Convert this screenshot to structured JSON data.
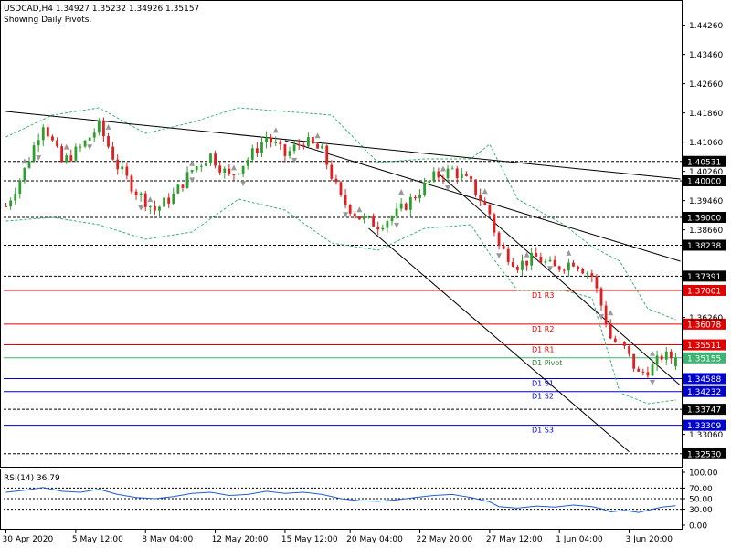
{
  "header": {
    "symbol_line": "USDCAD,H4  1.34927 1.35232 1.34926 1.35157",
    "subtitle": "Showing Daily Pivots."
  },
  "chart_data": {
    "type": "candlestick",
    "symbol": "USDCAD",
    "timeframe": "H4",
    "ohlc": {
      "open": 1.34927,
      "high": 1.35232,
      "low": 1.34926,
      "close": 1.35157
    },
    "ylim": [
      1.322,
      1.449
    ],
    "y_ticks": [
      "1.44260",
      "1.43460",
      "1.42660",
      "1.41860",
      "1.41060",
      "1.40260",
      "1.39460",
      "1.38660",
      "1.36260",
      "1.33060"
    ],
    "x_ticks": [
      "30 Apr 2020",
      "5 May 12:00",
      "8 May 04:00",
      "12 May 20:00",
      "15 May 12:00",
      "20 May 04:00",
      "22 May 20:00",
      "27 May 12:00",
      "1 Jun 04:00",
      "3 Jun 20:00"
    ],
    "x_count": 145,
    "price_path": [
      [
        0,
        1.393
      ],
      [
        4,
        1.403
      ],
      [
        8,
        1.416
      ],
      [
        12,
        1.405
      ],
      [
        16,
        1.409
      ],
      [
        20,
        1.415
      ],
      [
        24,
        1.404
      ],
      [
        28,
        1.397
      ],
      [
        32,
        1.392
      ],
      [
        36,
        1.396
      ],
      [
        40,
        1.403
      ],
      [
        44,
        1.407
      ],
      [
        48,
        1.401
      ],
      [
        52,
        1.406
      ],
      [
        56,
        1.412
      ],
      [
        60,
        1.407
      ],
      [
        64,
        1.411
      ],
      [
        68,
        1.408
      ],
      [
        72,
        1.395
      ],
      [
        76,
        1.39
      ],
      [
        80,
        1.388
      ],
      [
        84,
        1.391
      ],
      [
        88,
        1.396
      ],
      [
        92,
        1.401
      ],
      [
        96,
        1.403
      ],
      [
        100,
        1.399
      ],
      [
        104,
        1.391
      ],
      [
        106,
        1.382
      ],
      [
        110,
        1.377
      ],
      [
        114,
        1.379
      ],
      [
        118,
        1.376
      ],
      [
        122,
        1.378
      ],
      [
        126,
        1.374
      ],
      [
        128,
        1.366
      ],
      [
        130,
        1.357
      ],
      [
        133,
        1.354
      ],
      [
        136,
        1.347
      ],
      [
        139,
        1.349
      ],
      [
        141,
        1.352
      ],
      [
        144,
        1.3516
      ]
    ],
    "bands_upper": [
      [
        0,
        1.412
      ],
      [
        10,
        1.418
      ],
      [
        20,
        1.42
      ],
      [
        30,
        1.413
      ],
      [
        40,
        1.416
      ],
      [
        50,
        1.42
      ],
      [
        60,
        1.419
      ],
      [
        70,
        1.418
      ],
      [
        80,
        1.405
      ],
      [
        90,
        1.406
      ],
      [
        100,
        1.406
      ],
      [
        104,
        1.41
      ],
      [
        110,
        1.395
      ],
      [
        120,
        1.388
      ],
      [
        126,
        1.382
      ],
      [
        132,
        1.378
      ],
      [
        138,
        1.365
      ],
      [
        144,
        1.362
      ]
    ],
    "bands_lower": [
      [
        0,
        1.389
      ],
      [
        10,
        1.39
      ],
      [
        20,
        1.388
      ],
      [
        30,
        1.384
      ],
      [
        40,
        1.386
      ],
      [
        50,
        1.395
      ],
      [
        60,
        1.392
      ],
      [
        70,
        1.383
      ],
      [
        80,
        1.381
      ],
      [
        90,
        1.387
      ],
      [
        100,
        1.388
      ],
      [
        104,
        1.38
      ],
      [
        110,
        1.37
      ],
      [
        120,
        1.37
      ],
      [
        126,
        1.368
      ],
      [
        132,
        1.342
      ],
      [
        138,
        1.339
      ],
      [
        144,
        1.34
      ]
    ],
    "horizontal_levels": [
      {
        "value": 1.40531,
        "label": "1.40531",
        "style": "dash",
        "color": "#000000"
      },
      {
        "value": 1.4,
        "label": "1.40000",
        "style": "dash",
        "color": "#000000"
      },
      {
        "value": 1.39,
        "label": "1.39000",
        "style": "dash",
        "color": "#000000"
      },
      {
        "value": 1.38238,
        "label": "1.38238",
        "style": "dash",
        "color": "#000000"
      },
      {
        "value": 1.37391,
        "label": "1.37391",
        "style": "dash",
        "color": "#000000"
      },
      {
        "value": 1.37001,
        "label": "1.37001",
        "style": "solid",
        "color": "#e00000",
        "pivot": "D1 R3"
      },
      {
        "value": 1.36078,
        "label": "1.36078",
        "style": "solid",
        "color": "#e00000",
        "pivot": "D1 R2"
      },
      {
        "value": 1.35511,
        "label": "1.35511",
        "style": "solid",
        "color": "#e00000",
        "pivot": "D1 R1"
      },
      {
        "value": 1.35155,
        "label": "1.35155",
        "style": "solid",
        "color": "#3cb371",
        "pivot": "D1 Pivot"
      },
      {
        "value": 1.34588,
        "label": "1.34588",
        "style": "solid",
        "color": "#0000cc",
        "pivot": "D1 S1"
      },
      {
        "value": 1.34232,
        "label": "1.34232",
        "style": "solid",
        "color": "#0000cc",
        "pivot": "D1 S2"
      },
      {
        "value": 1.33747,
        "label": "1.33747",
        "style": "dash",
        "color": "#000000"
      },
      {
        "value": 1.33309,
        "label": "1.33309",
        "style": "solid",
        "color": "#0000cc",
        "pivot": "D1 S3"
      },
      {
        "value": 1.3253,
        "label": "1.32530",
        "style": "dash",
        "color": "#000000"
      }
    ],
    "trendlines": [
      {
        "from": [
          0,
          1.419
        ],
        "to": [
          145,
          1.4005
        ]
      },
      {
        "from": [
          60,
          1.411
        ],
        "to": [
          145,
          1.378
        ]
      },
      {
        "from": [
          93,
          1.402
        ],
        "to": [
          145,
          1.344
        ]
      },
      {
        "from": [
          78,
          1.387
        ],
        "to": [
          134,
          1.3258
        ]
      }
    ],
    "colors": {
      "bull": "#2e9e2e",
      "bear": "#e02020",
      "bands": "#3cb371",
      "rsi": "#1e5fd8"
    }
  },
  "rsi": {
    "label": "RSI(14) 36.79",
    "ticks": [
      "100.00",
      "70.00",
      "50.00",
      "30.00",
      "0.00"
    ],
    "levels": [
      70,
      50,
      30
    ],
    "series_path": [
      [
        0,
        62
      ],
      [
        4,
        66
      ],
      [
        8,
        71
      ],
      [
        12,
        64
      ],
      [
        16,
        62
      ],
      [
        20,
        68
      ],
      [
        24,
        58
      ],
      [
        28,
        52
      ],
      [
        32,
        50
      ],
      [
        36,
        54
      ],
      [
        40,
        60
      ],
      [
        44,
        62
      ],
      [
        48,
        56
      ],
      [
        52,
        58
      ],
      [
        56,
        64
      ],
      [
        60,
        60
      ],
      [
        64,
        62
      ],
      [
        68,
        58
      ],
      [
        72,
        50
      ],
      [
        76,
        46
      ],
      [
        80,
        45
      ],
      [
        84,
        48
      ],
      [
        88,
        52
      ],
      [
        92,
        56
      ],
      [
        96,
        58
      ],
      [
        100,
        52
      ],
      [
        104,
        44
      ],
      [
        106,
        35
      ],
      [
        110,
        32
      ],
      [
        114,
        36
      ],
      [
        118,
        34
      ],
      [
        122,
        38
      ],
      [
        126,
        35
      ],
      [
        128,
        31
      ],
      [
        130,
        25
      ],
      [
        133,
        28
      ],
      [
        136,
        24
      ],
      [
        139,
        30
      ],
      [
        141,
        34
      ],
      [
        144,
        36.79
      ]
    ]
  }
}
